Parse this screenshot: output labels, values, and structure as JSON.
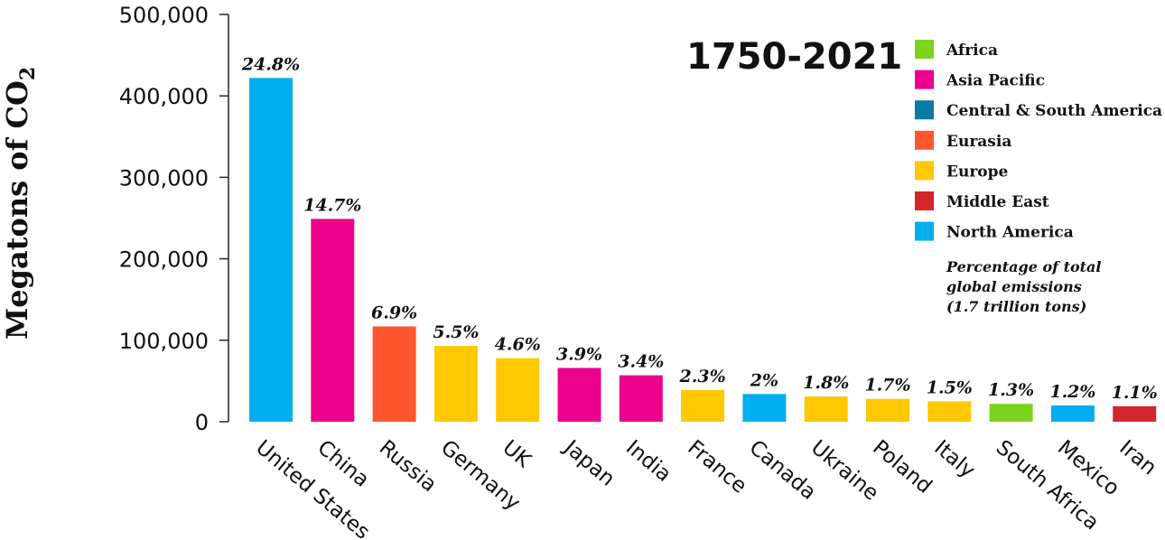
{
  "chart_data": {
    "type": "bar",
    "title": "1750-2021",
    "ylabel": "Megatons of CO",
    "ylabel_subscript": "2",
    "xlabel": "",
    "ylim": [
      0,
      500000
    ],
    "yticks": [
      0,
      100000,
      200000,
      300000,
      400000,
      500000
    ],
    "ytick_labels": [
      "0",
      "100,000",
      "200,000",
      "300,000",
      "400,000",
      "500,000"
    ],
    "grid": false,
    "legend_position": "top-right",
    "categories": [
      "United States",
      "China",
      "Russia",
      "Germany",
      "UK",
      "Japan",
      "India",
      "France",
      "Canada",
      "Ukraine",
      "Poland",
      "Italy",
      "South Africa",
      "Mexico",
      "Iran"
    ],
    "values": [
      422000,
      249000,
      117000,
      93000,
      78000,
      66000,
      57000,
      39000,
      34000,
      31000,
      28000,
      25000,
      22000,
      20000,
      19000
    ],
    "data_labels": [
      "24.8%",
      "14.7%",
      "6.9%",
      "5.5%",
      "4.6%",
      "3.9%",
      "3.4%",
      "2.3%",
      "2%",
      "1.8%",
      "1.7%",
      "1.5%",
      "1.3%",
      "1.2%",
      "1.1%"
    ],
    "regions": [
      "North America",
      "Asia Pacific",
      "Eurasia",
      "Europe",
      "Europe",
      "Asia Pacific",
      "Asia Pacific",
      "Europe",
      "North America",
      "Europe",
      "Europe",
      "Europe",
      "Africa",
      "North America",
      "Middle East"
    ],
    "legend": [
      {
        "name": "Africa",
        "color": "#7ed321"
      },
      {
        "name": "Asia Pacific",
        "color": "#ec008c"
      },
      {
        "name": "Central & South America",
        "color": "#0a7aa3"
      },
      {
        "name": "Eurasia",
        "color": "#ff5630"
      },
      {
        "name": "Europe",
        "color": "#ffc800"
      },
      {
        "name": "Middle East",
        "color": "#d3262b"
      },
      {
        "name": "North America",
        "color": "#00aeef"
      }
    ],
    "note_lines": [
      "Percentage of total",
      "global emissions",
      "(1.7 trillion tons)"
    ]
  }
}
